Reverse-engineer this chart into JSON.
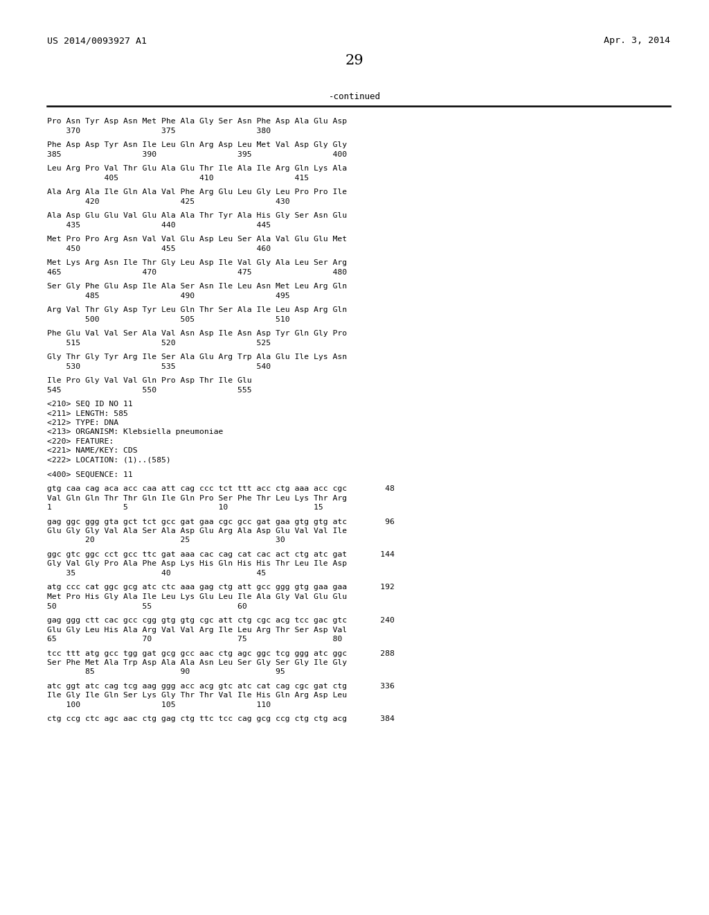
{
  "header_left": "US 2014/0093927 A1",
  "header_right": "Apr. 3, 2014",
  "page_number": "29",
  "continued_label": "-continued",
  "bg_color": "#ffffff",
  "text_color": "#000000",
  "font_size": 8.2,
  "lines": [
    "Pro Asn Tyr Asp Asn Met Phe Ala Gly Ser Asn Phe Asp Ala Glu Asp",
    "    370                 375                 380",
    "",
    "Phe Asp Asp Tyr Asn Ile Leu Gln Arg Asp Leu Met Val Asp Gly Gly",
    "385                 390                 395                 400",
    "",
    "Leu Arg Pro Val Thr Glu Ala Glu Thr Ile Ala Ile Arg Gln Lys Ala",
    "            405                 410                 415",
    "",
    "Ala Arg Ala Ile Gln Ala Val Phe Arg Glu Leu Gly Leu Pro Pro Ile",
    "        420                 425                 430",
    "",
    "Ala Asp Glu Glu Val Glu Ala Ala Thr Tyr Ala His Gly Ser Asn Glu",
    "    435                 440                 445",
    "",
    "Met Pro Pro Arg Asn Val Val Glu Asp Leu Ser Ala Val Glu Glu Met",
    "    450                 455                 460",
    "",
    "Met Lys Arg Asn Ile Thr Gly Leu Asp Ile Val Gly Ala Leu Ser Arg",
    "465                 470                 475                 480",
    "",
    "Ser Gly Phe Glu Asp Ile Ala Ser Asn Ile Leu Asn Met Leu Arg Gln",
    "        485                 490                 495",
    "",
    "Arg Val Thr Gly Asp Tyr Leu Gln Thr Ser Ala Ile Leu Asp Arg Gln",
    "        500                 505                 510",
    "",
    "Phe Glu Val Val Ser Ala Val Asn Asp Ile Asn Asp Tyr Gln Gly Pro",
    "    515                 520                 525",
    "",
    "Gly Thr Gly Tyr Arg Ile Ser Ala Glu Arg Trp Ala Glu Ile Lys Asn",
    "    530                 535                 540",
    "",
    "Ile Pro Gly Val Val Gln Pro Asp Thr Ile Glu",
    "545                 550                 555",
    "",
    "<210> SEQ ID NO 11",
    "<211> LENGTH: 585",
    "<212> TYPE: DNA",
    "<213> ORGANISM: Klebsiella pneumoniae",
    "<220> FEATURE:",
    "<221> NAME/KEY: CDS",
    "<222> LOCATION: (1)..(585)",
    "",
    "<400> SEQUENCE: 11",
    "",
    "gtg caa cag aca acc caa att cag ccc tct ttt acc ctg aaa acc cgc        48",
    "Val Gln Gln Thr Thr Gln Ile Gln Pro Ser Phe Thr Leu Lys Thr Arg",
    "1               5                   10                  15",
    "",
    "gag ggc ggg gta gct tct gcc gat gaa cgc gcc gat gaa gtg gtg atc        96",
    "Glu Gly Gly Val Ala Ser Ala Asp Glu Arg Ala Asp Glu Val Val Ile",
    "        20                  25                  30",
    "",
    "ggc gtc ggc cct gcc ttc gat aaa cac cag cat cac act ctg atc gat       144",
    "Gly Val Gly Pro Ala Phe Asp Lys His Gln His His Thr Leu Ile Asp",
    "    35                  40                  45",
    "",
    "atg ccc cat ggc gcg atc ctc aaa gag ctg att gcc ggg gtg gaa gaa       192",
    "Met Pro His Gly Ala Ile Leu Lys Glu Leu Ile Ala Gly Val Glu Glu",
    "50                  55                  60",
    "",
    "gag ggg ctt cac gcc cgg gtg gtg cgc att ctg cgc acg tcc gac gtc       240",
    "Glu Gly Leu His Ala Arg Val Val Arg Ile Leu Arg Thr Ser Asp Val",
    "65                  70                  75                  80",
    "",
    "tcc ttt atg gcc tgg gat gcg gcc aac ctg agc ggc tcg ggg atc ggc       288",
    "Ser Phe Met Ala Trp Asp Ala Ala Asn Leu Ser Gly Ser Gly Ile Gly",
    "        85                  90                  95",
    "",
    "atc ggt atc cag tcg aag ggg acc acg gtc atc cat cag cgc gat ctg       336",
    "Ile Gly Ile Gln Ser Lys Gly Thr Thr Val Ile His Gln Arg Asp Leu",
    "    100                 105                 110",
    "",
    "ctg ccg ctc agc aac ctg gag ctg ttc tcc cag gcg ccg ctg ctg acg       384"
  ]
}
